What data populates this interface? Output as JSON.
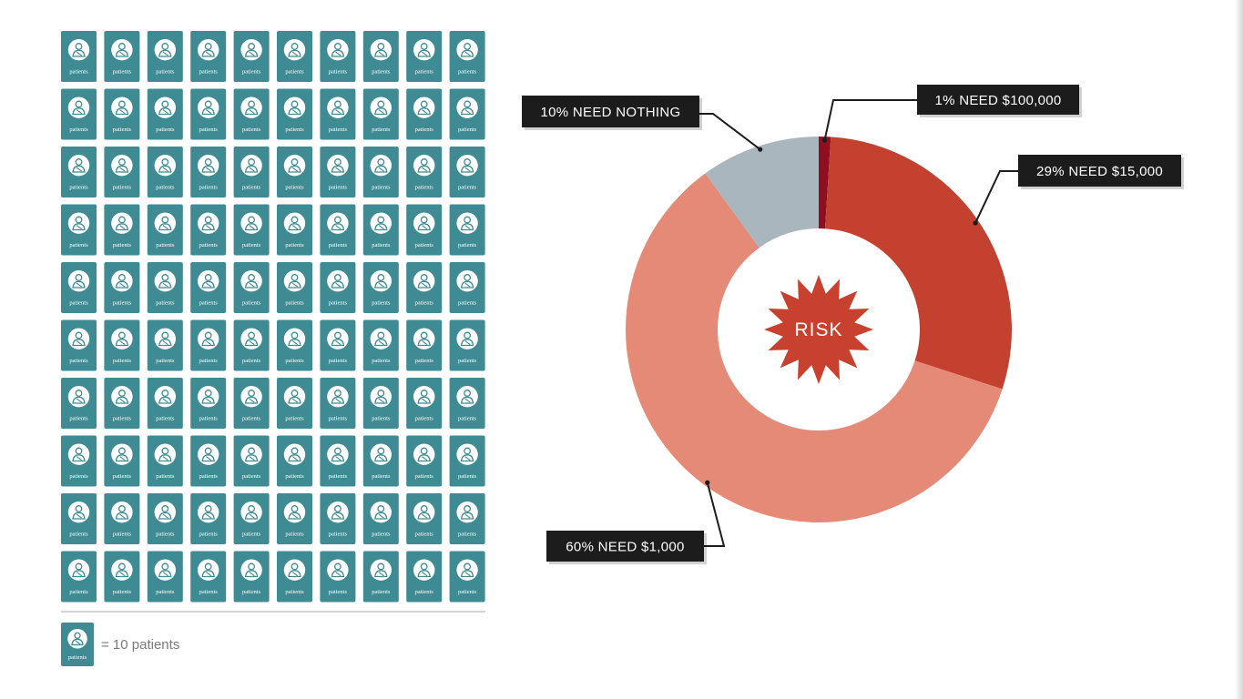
{
  "pictogram": {
    "rows": 10,
    "cols": 10,
    "tile_label": "patients",
    "icon": "patient-icon",
    "tile_color": "#3e8b93",
    "divider_color": "#d5d5d5"
  },
  "legend": {
    "icon": "patient-icon",
    "tile_label": "patients",
    "text": "= 10 patients"
  },
  "chart_data": {
    "type": "pie",
    "style": "donut",
    "center_label": "RISK",
    "center_color": "#c8412f",
    "slices": [
      {
        "value": 1,
        "label": "1% NEED $100,000",
        "color": "#8e1020"
      },
      {
        "value": 29,
        "label": "29% NEED $15,000",
        "color": "#c4402f"
      },
      {
        "value": 60,
        "label": "60% NEED $1,000",
        "color": "#e48a76"
      },
      {
        "value": 10,
        "label": "10% NEED NOTHING",
        "color": "#aab6bd"
      }
    ],
    "start": "12 o'clock",
    "direction": "clockwise"
  },
  "callout_style": {
    "box_color": "#1c1c1c",
    "line_color": "#1c1c1c"
  }
}
